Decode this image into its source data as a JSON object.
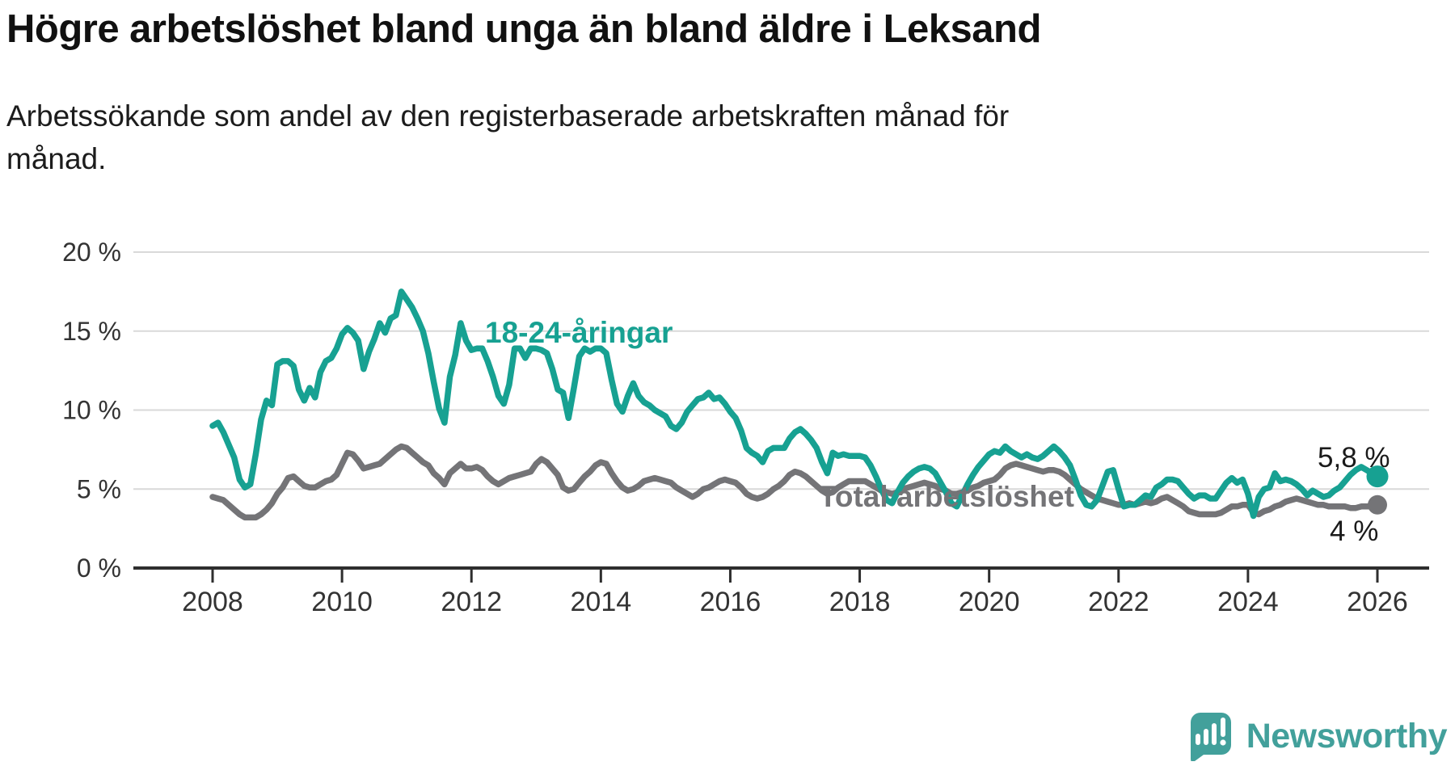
{
  "title": "Högre arbetslöshet bland unga än bland äldre i Leksand",
  "subtitle_line1": "Arbetssökande som andel av den registerbaserade arbetskraften månad för",
  "subtitle_line2": "månad.",
  "footer": {
    "brand": "Newsworthy",
    "logo_icon": "newsworthy-pin-barchart-icon",
    "logo_color": "#42a09b"
  },
  "colors": {
    "youth_line": "#17a192",
    "total_line": "#747477",
    "gridline": "#d9d9d9",
    "axis": "#2e2e2e",
    "tick_label": "#333333",
    "annotation_text": "#1a1a1a"
  },
  "chart_data": {
    "type": "line",
    "title": "Högre arbetslöshet bland unga än bland äldre i Leksand",
    "xlabel": "",
    "ylabel": "Arbetssökande som andel av den registerbaserade arbetskraften",
    "x_unit": "month",
    "x_start": "2008-01",
    "x_end": "2026-01",
    "ylim": [
      0,
      20
    ],
    "grid": "horizontal",
    "legend_position": "inline-labels",
    "x_ticks": [
      "2008",
      "2010",
      "2012",
      "2014",
      "2016",
      "2018",
      "2020",
      "2022",
      "2024",
      "2026"
    ],
    "y_ticks": [
      {
        "value": 20,
        "label": "20 %"
      },
      {
        "value": 15,
        "label": "15 %"
      },
      {
        "value": 10,
        "label": "10 %"
      },
      {
        "value": 5,
        "label": "5 %"
      },
      {
        "value": 0,
        "label": "0 %"
      }
    ],
    "series": [
      {
        "name": "Total arbetslöshet",
        "color": "#747477",
        "end_label": "4 %",
        "end_value": 4.0,
        "values": [
          4.5,
          4.4,
          4.3,
          4.0,
          3.7,
          3.4,
          3.2,
          3.2,
          3.2,
          3.4,
          3.7,
          4.1,
          4.7,
          5.1,
          5.7,
          5.8,
          5.5,
          5.2,
          5.1,
          5.1,
          5.3,
          5.5,
          5.6,
          5.9,
          6.6,
          7.3,
          7.2,
          6.8,
          6.3,
          6.4,
          6.5,
          6.6,
          6.9,
          7.2,
          7.5,
          7.7,
          7.6,
          7.3,
          7.0,
          6.7,
          6.5,
          6.0,
          5.7,
          5.3,
          6.0,
          6.3,
          6.6,
          6.3,
          6.3,
          6.4,
          6.2,
          5.8,
          5.5,
          5.3,
          5.5,
          5.7,
          5.8,
          5.9,
          6.0,
          6.1,
          6.6,
          6.9,
          6.7,
          6.3,
          5.9,
          5.1,
          4.9,
          5.0,
          5.4,
          5.8,
          6.1,
          6.5,
          6.7,
          6.6,
          6.0,
          5.5,
          5.1,
          4.9,
          5.0,
          5.2,
          5.5,
          5.6,
          5.7,
          5.6,
          5.5,
          5.4,
          5.1,
          4.9,
          4.7,
          4.5,
          4.7,
          5.0,
          5.1,
          5.3,
          5.5,
          5.6,
          5.5,
          5.4,
          5.1,
          4.7,
          4.5,
          4.4,
          4.5,
          4.7,
          5.0,
          5.2,
          5.5,
          5.9,
          6.1,
          6.0,
          5.8,
          5.5,
          5.2,
          4.9,
          4.7,
          4.8,
          5.1,
          5.3,
          5.5,
          5.5,
          5.5,
          5.5,
          5.3,
          5.1,
          4.9,
          4.8,
          4.7,
          4.8,
          5.0,
          5.1,
          5.2,
          5.3,
          5.4,
          5.3,
          5.2,
          5.0,
          4.9,
          4.7,
          4.7,
          4.8,
          4.9,
          5.1,
          5.2,
          5.4,
          5.5,
          5.6,
          5.9,
          6.3,
          6.5,
          6.6,
          6.5,
          6.4,
          6.3,
          6.2,
          6.1,
          6.2,
          6.2,
          6.1,
          5.9,
          5.6,
          5.3,
          5.0,
          4.8,
          4.6,
          4.4,
          4.3,
          4.2,
          4.1,
          4.0,
          4.0,
          4.1,
          4.0,
          4.1,
          4.2,
          4.1,
          4.2,
          4.4,
          4.5,
          4.3,
          4.1,
          3.9,
          3.6,
          3.5,
          3.4,
          3.4,
          3.4,
          3.4,
          3.5,
          3.7,
          3.9,
          3.9,
          4.0,
          4.0,
          3.5,
          3.4,
          3.6,
          3.7,
          3.9,
          4.0,
          4.2,
          4.3,
          4.4,
          4.3,
          4.2,
          4.1,
          4.0,
          4.0,
          3.9,
          3.9,
          3.9,
          3.9,
          3.8,
          3.8,
          3.9,
          3.9,
          3.9,
          4.0
        ]
      },
      {
        "name": "18-24-åringar",
        "color": "#17a192",
        "end_label": "5,8 %",
        "end_value": 5.8,
        "values": [
          9.0,
          9.2,
          8.6,
          7.8,
          7.0,
          5.6,
          5.1,
          5.3,
          7.2,
          9.4,
          10.6,
          10.3,
          12.9,
          13.1,
          13.1,
          12.8,
          11.3,
          10.6,
          11.4,
          10.8,
          12.4,
          13.1,
          13.3,
          13.9,
          14.8,
          15.2,
          14.9,
          14.4,
          12.6,
          13.7,
          14.5,
          15.5,
          14.9,
          15.8,
          16.0,
          17.5,
          17.0,
          16.5,
          15.8,
          15.0,
          13.6,
          11.8,
          10.1,
          9.2,
          12.1,
          13.5,
          15.5,
          14.4,
          13.8,
          13.9,
          13.9,
          13.1,
          12.1,
          10.9,
          10.4,
          11.6,
          13.9,
          13.9,
          13.3,
          13.9,
          13.9,
          13.8,
          13.6,
          12.6,
          11.3,
          11.1,
          9.5,
          11.4,
          13.4,
          13.9,
          13.7,
          13.9,
          13.9,
          13.6,
          11.9,
          10.4,
          9.9,
          10.9,
          11.7,
          10.9,
          10.5,
          10.3,
          10.0,
          9.8,
          9.6,
          9.0,
          8.8,
          9.2,
          9.9,
          10.3,
          10.7,
          10.8,
          11.1,
          10.7,
          10.8,
          10.4,
          9.9,
          9.5,
          8.7,
          7.6,
          7.3,
          7.1,
          6.7,
          7.4,
          7.6,
          7.6,
          7.6,
          8.2,
          8.6,
          8.8,
          8.5,
          8.1,
          7.6,
          6.7,
          6.0,
          7.3,
          7.1,
          7.2,
          7.1,
          7.1,
          7.1,
          7.0,
          6.5,
          5.8,
          5.0,
          4.3,
          4.1,
          4.8,
          5.4,
          5.8,
          6.1,
          6.3,
          6.4,
          6.3,
          6.0,
          5.4,
          4.8,
          4.1,
          3.9,
          4.6,
          5.3,
          5.9,
          6.4,
          6.8,
          7.2,
          7.4,
          7.3,
          7.7,
          7.4,
          7.2,
          7.0,
          7.2,
          7.0,
          6.9,
          7.1,
          7.4,
          7.7,
          7.4,
          7.0,
          6.5,
          5.6,
          4.6,
          4.0,
          3.9,
          4.3,
          5.2,
          6.1,
          6.2,
          5.0,
          3.9,
          4.0,
          4.0,
          4.3,
          4.6,
          4.5,
          5.1,
          5.3,
          5.6,
          5.6,
          5.5,
          5.1,
          4.7,
          4.4,
          4.6,
          4.6,
          4.4,
          4.4,
          4.9,
          5.4,
          5.7,
          5.4,
          5.6,
          4.7,
          3.3,
          4.5,
          5.0,
          5.1,
          6.0,
          5.5,
          5.6,
          5.5,
          5.3,
          5.0,
          4.6,
          4.9,
          4.7,
          4.5,
          4.6,
          4.9,
          5.1,
          5.5,
          5.9,
          6.2,
          6.4,
          6.2,
          6.0,
          5.8
        ]
      }
    ]
  }
}
